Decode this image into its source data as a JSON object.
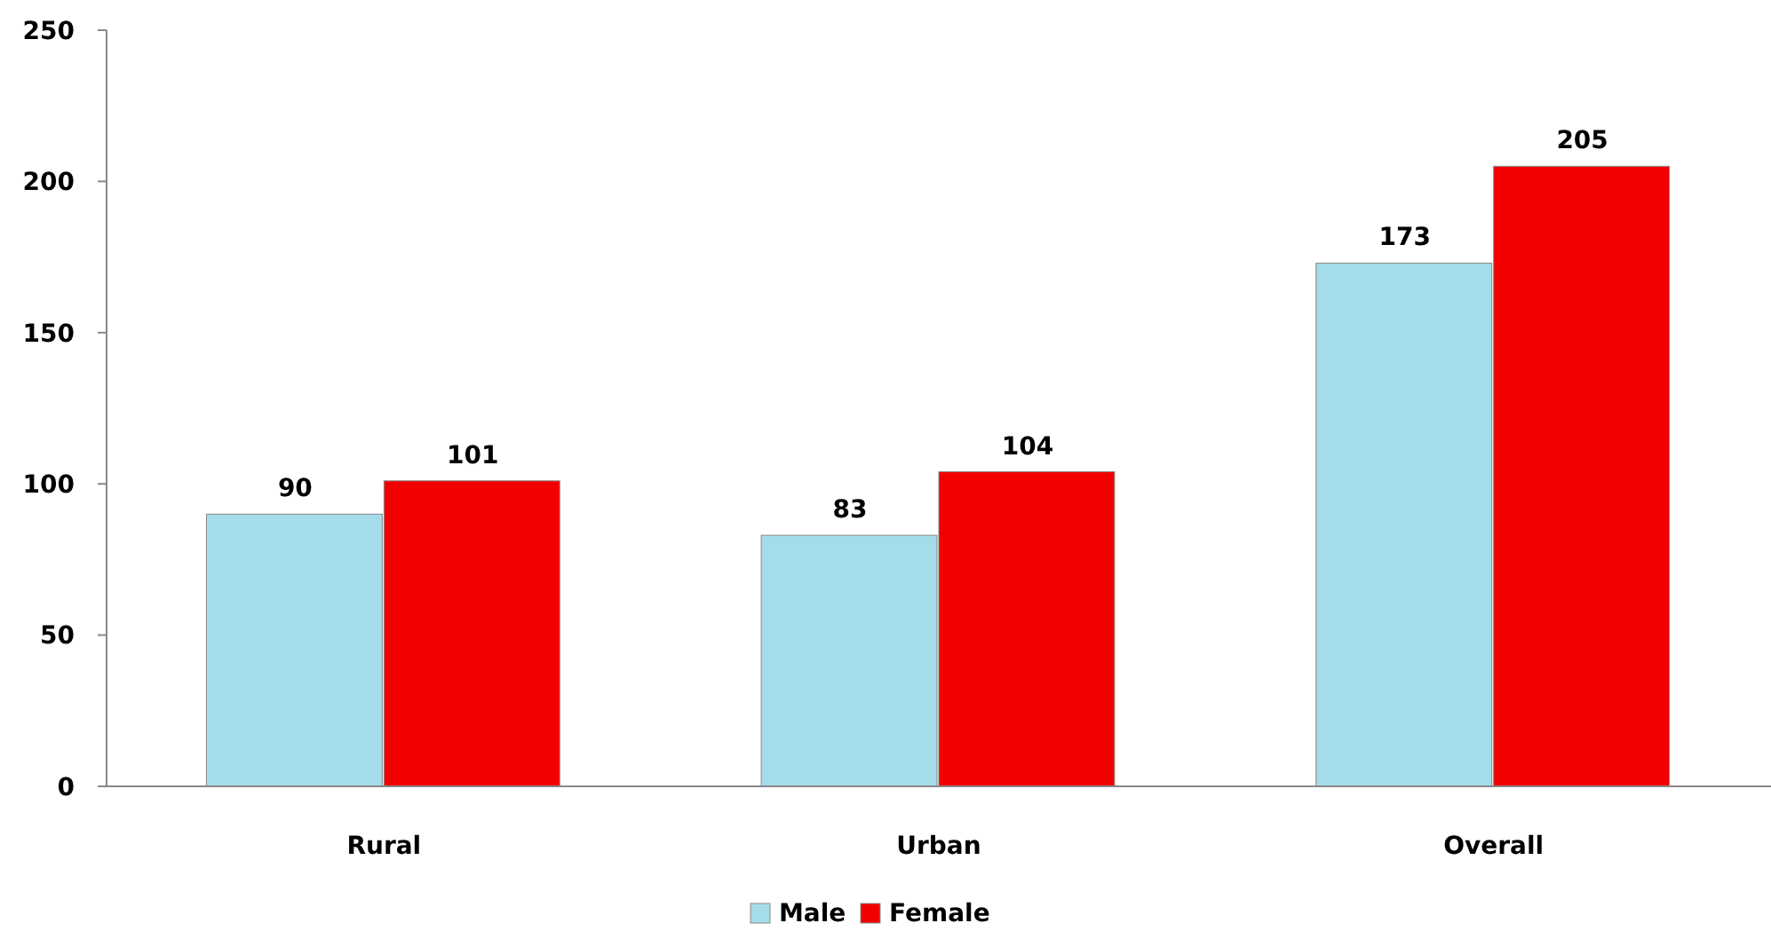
{
  "chart_data": {
    "type": "bar",
    "categories": [
      "Rural",
      "Urban",
      "Overall"
    ],
    "series": [
      {
        "name": "Male",
        "color": "#a5dcea",
        "values": [
          90,
          83,
          173
        ]
      },
      {
        "name": "Female",
        "color": "#f20000",
        "values": [
          101,
          104,
          205
        ]
      }
    ],
    "ylim": [
      0,
      250
    ],
    "yticks": [
      0,
      50,
      100,
      150,
      200,
      250
    ],
    "grid": false,
    "legend": "bottom",
    "data_labels": true
  }
}
